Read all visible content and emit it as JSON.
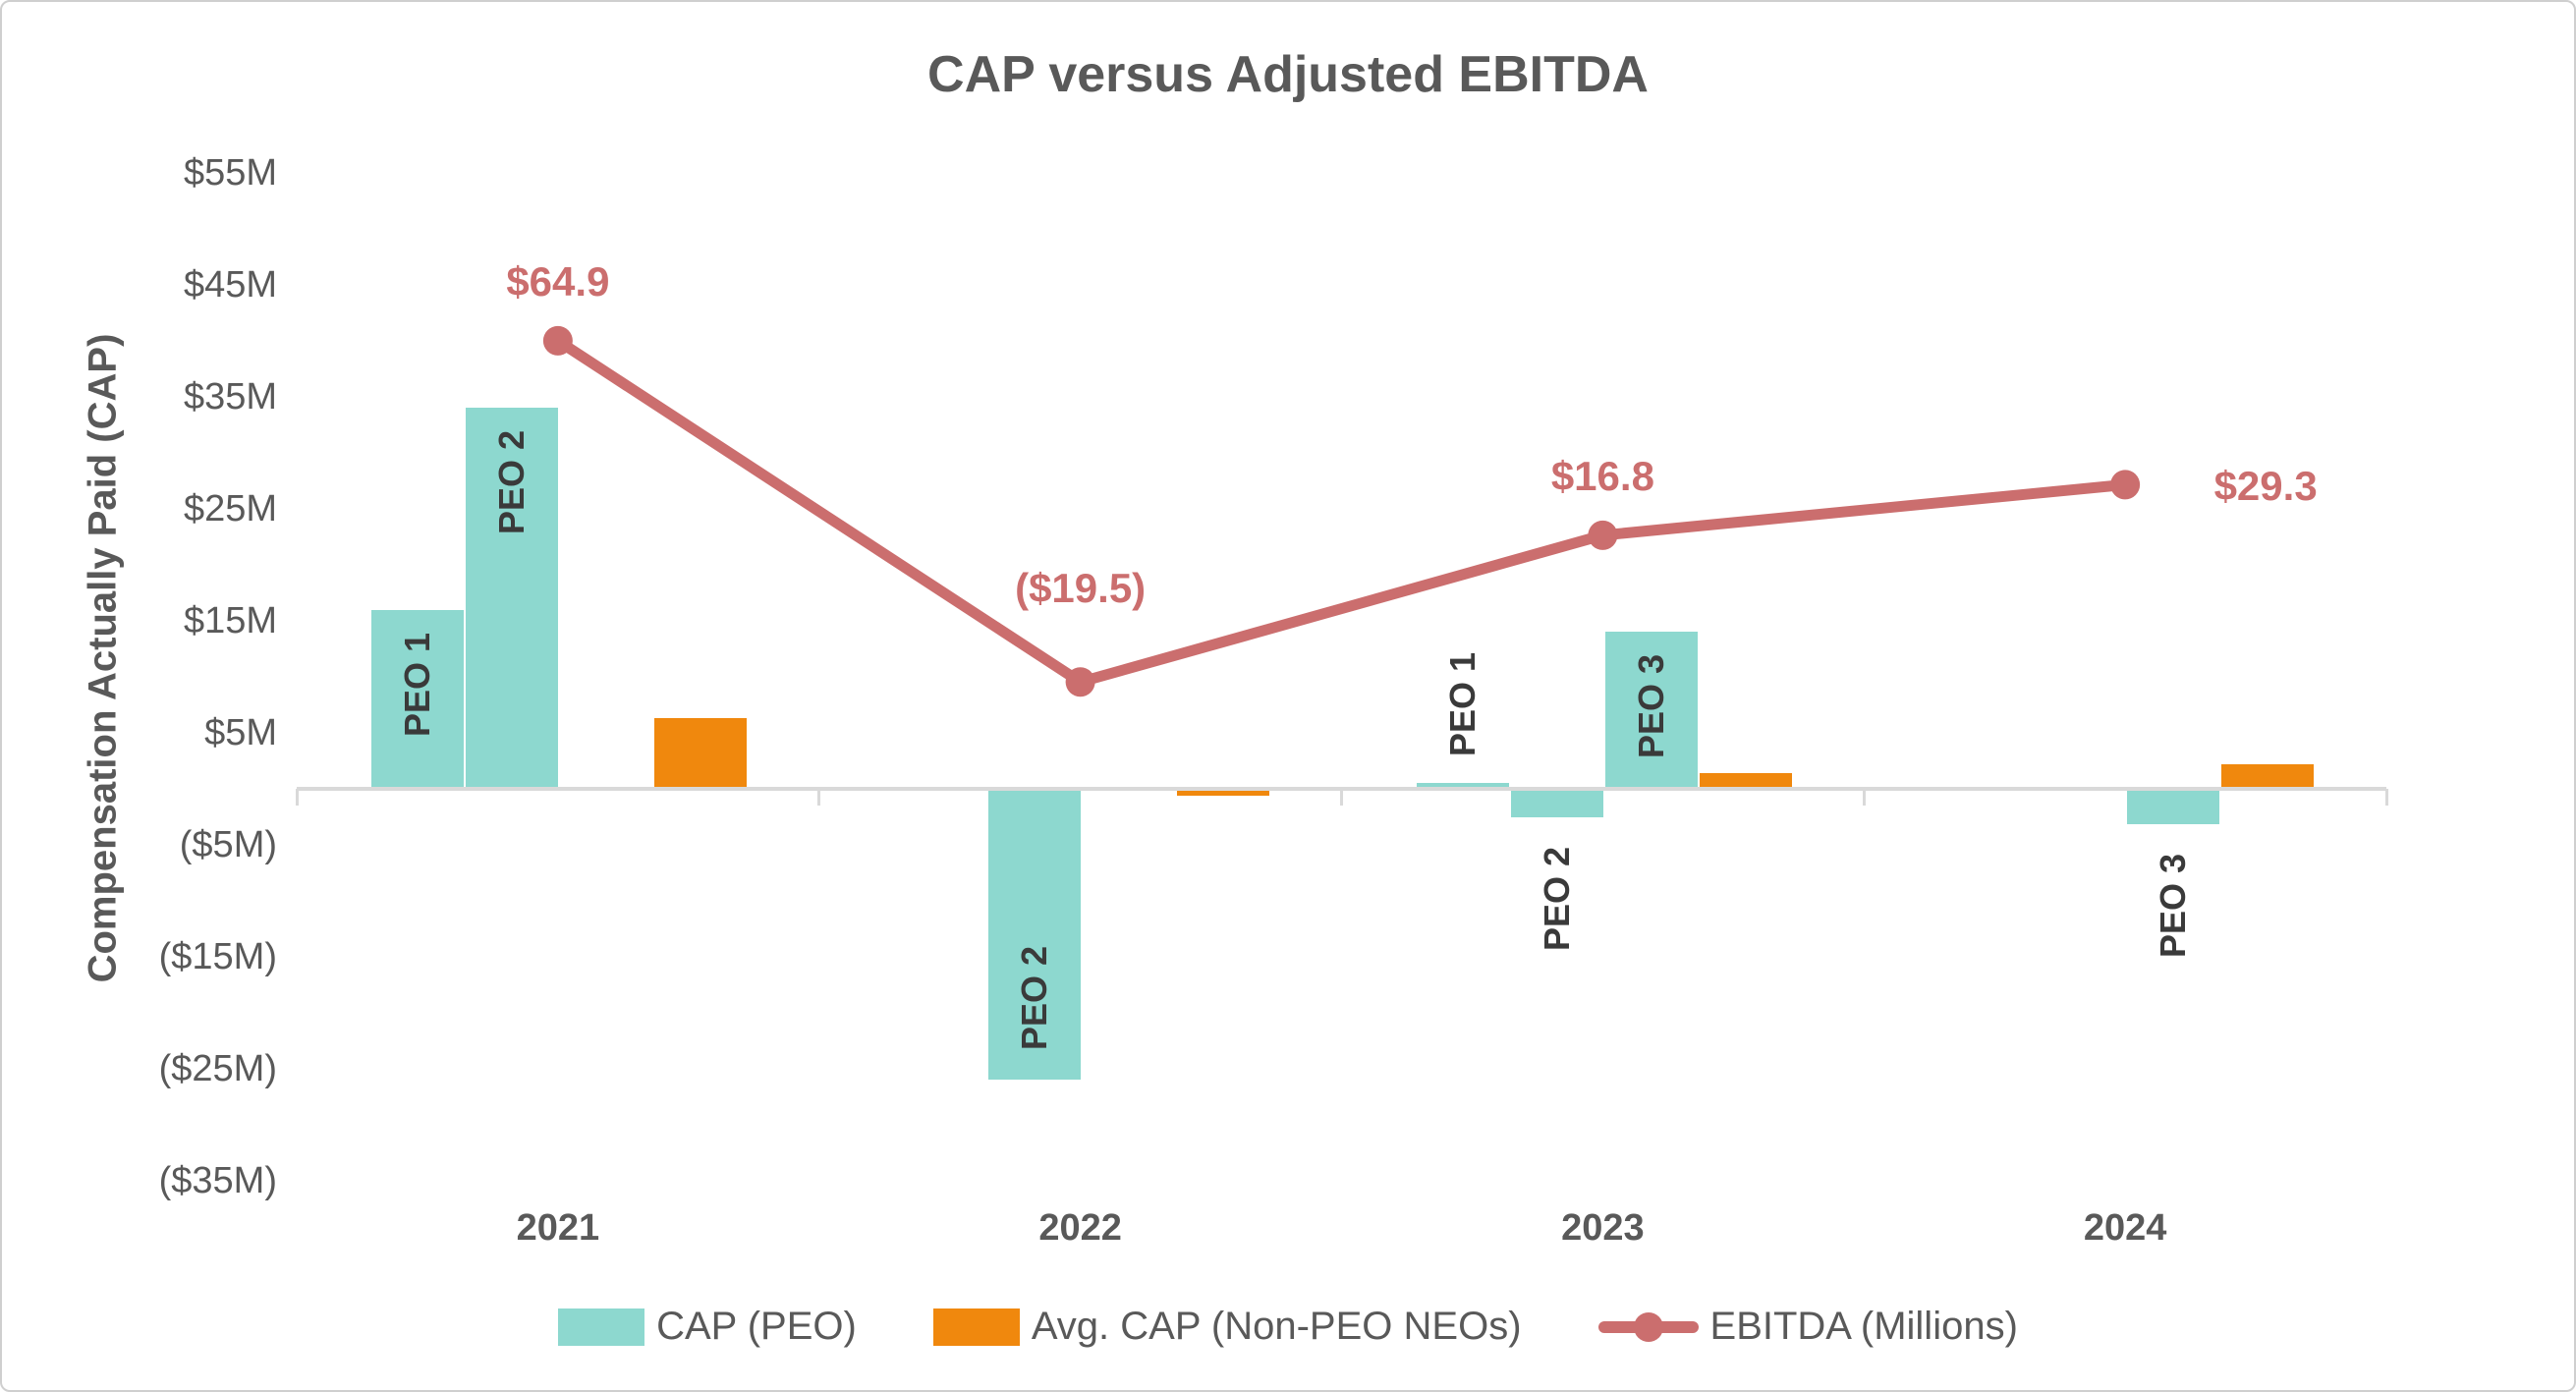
{
  "chart": {
    "title": "CAP versus Adjusted EBITDA",
    "y_axis": {
      "title": "Compensation Actually Paid (CAP)",
      "ticks": [
        {
          "label": "$55M",
          "value": 55
        },
        {
          "label": "$45M",
          "value": 45
        },
        {
          "label": "$35M",
          "value": 35
        },
        {
          "label": "$25M",
          "value": 25
        },
        {
          "label": "$15M",
          "value": 15
        },
        {
          "label": "$5M",
          "value": 5
        },
        {
          "label": "($5M)",
          "value": -5
        },
        {
          "label": "($15M)",
          "value": -15
        },
        {
          "label": "($25M)",
          "value": -25
        },
        {
          "label": "($35M)",
          "value": -35
        }
      ]
    },
    "x_axis": {
      "categories": [
        "2021",
        "2022",
        "2023",
        "2024"
      ]
    },
    "legend": [
      {
        "label": "CAP (PEO)",
        "swatch": "bar",
        "color": "#8DD8CF"
      },
      {
        "label": "Avg. CAP (Non-PEO NEOs)",
        "swatch": "bar",
        "color": "#F0880D"
      },
      {
        "label": "EBITDA (Millions)",
        "swatch": "line-marker",
        "color": "#CB6E6E"
      }
    ],
    "colors": {
      "cap_peo": "#8DD8CF",
      "non_peo": "#F0880D",
      "ebitda": "#CB6E6E",
      "text": "#595959",
      "bar_label": "#3A3A3A",
      "axis_line": "#D9D9D9"
    }
  },
  "chart_data": {
    "type": "combo-bar-line",
    "title": "CAP versus Adjusted EBITDA",
    "ylabel": "Compensation Actually Paid (CAP)",
    "units": "USD millions",
    "categories": [
      "2021",
      "2022",
      "2023",
      "2024"
    ],
    "left_axis_range": [
      -35,
      55
    ],
    "grid": "none",
    "legend_position": "bottom",
    "series": [
      {
        "name": "CAP (PEO)",
        "type": "bar",
        "color": "#8DD8CF",
        "points": [
          {
            "category": "2021",
            "bar_label": "PEO 1",
            "value": 16.0,
            "slot": 1,
            "label_pos": "inside-top"
          },
          {
            "category": "2021",
            "bar_label": "PEO 2",
            "value": 34.0,
            "slot": 2,
            "label_pos": "inside-top"
          },
          {
            "category": "2022",
            "bar_label": "PEO 2",
            "value": -26.0,
            "slot": 2,
            "label_pos": "inside-bottom"
          },
          {
            "category": "2023",
            "bar_label": "PEO 1",
            "value": 0.5,
            "slot": 1,
            "label_pos": "above"
          },
          {
            "category": "2023",
            "bar_label": "PEO 2",
            "value": -2.5,
            "slot": 2,
            "label_pos": "below"
          },
          {
            "category": "2023",
            "bar_label": "PEO 3",
            "value": 14.0,
            "slot": 3,
            "label_pos": "inside-top"
          },
          {
            "category": "2024",
            "bar_label": "PEO 3",
            "value": -3.2,
            "slot": 3,
            "label_pos": "below"
          }
        ]
      },
      {
        "name": "Avg. CAP (Non-PEO NEOs)",
        "type": "bar",
        "color": "#F0880D",
        "points": [
          {
            "category": "2021",
            "value": 6.3,
            "slot": 4
          },
          {
            "category": "2022",
            "value": -0.6,
            "slot": 4
          },
          {
            "category": "2023",
            "value": 1.4,
            "slot": 4
          },
          {
            "category": "2024",
            "value": 2.2,
            "slot": 4
          }
        ]
      },
      {
        "name": "EBITDA (Millions)",
        "type": "line",
        "color": "#CB6E6E",
        "axis": "secondary-hidden",
        "points": [
          {
            "category": "2021",
            "value": 64.9,
            "label": "$64.9",
            "label_pos": "above"
          },
          {
            "category": "2022",
            "value": -19.5,
            "label": "($19.5)",
            "label_pos": "above-far"
          },
          {
            "category": "2023",
            "value": 16.8,
            "label": "$16.8",
            "label_pos": "above"
          },
          {
            "category": "2024",
            "value": 29.3,
            "label": "$29.3",
            "label_pos": "right"
          }
        ]
      }
    ]
  }
}
